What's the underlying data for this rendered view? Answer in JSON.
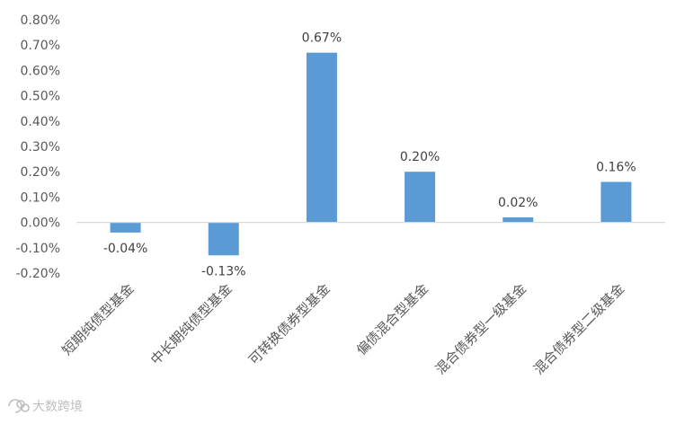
{
  "chart_data": {
    "type": "bar",
    "categories": [
      "短期纯债型基金",
      "中长期纯债型基金",
      "可转换债券型基金",
      "偏债混合型基金",
      "混合债券型一级基金",
      "混合债券型二级基金"
    ],
    "values": [
      -0.04,
      -0.13,
      0.67,
      0.2,
      0.02,
      0.16
    ],
    "value_labels": [
      "-0.04%",
      "-0.13%",
      "0.67%",
      "0.20%",
      "0.02%",
      "0.16%"
    ],
    "y_ticks": [
      0.8,
      0.7,
      0.6,
      0.5,
      0.4,
      0.3,
      0.2,
      0.1,
      0.0,
      -0.1,
      -0.2
    ],
    "y_tick_labels": [
      "0.80%",
      "0.70%",
      "0.60%",
      "0.50%",
      "0.40%",
      "0.30%",
      "0.20%",
      "0.10%",
      "0.00%",
      "-0.10%",
      "-0.20%"
    ],
    "ylim": [
      -0.2,
      0.8
    ],
    "grid": false,
    "legend": "none",
    "title": "",
    "xlabel": "",
    "ylabel": "",
    "bar_color": "#5B9BD5",
    "axis_color": "#D9D9D9"
  },
  "watermark": {
    "text": "大数跨境"
  }
}
